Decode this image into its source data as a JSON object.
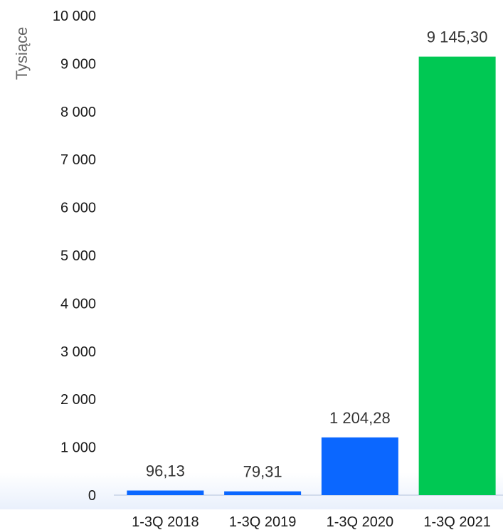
{
  "chart_data": {
    "type": "bar",
    "ylabel": "Tysiące",
    "xlabel": "",
    "title": "",
    "categories": [
      "1-3Q 2018",
      "1-3Q 2019",
      "1-3Q 2020",
      "1-3Q 2021"
    ],
    "values": [
      96.13,
      79.31,
      1204.28,
      9145.3
    ],
    "value_labels": [
      "96,13",
      "79,31",
      "1 204,28",
      "9 145,30"
    ],
    "ylim": [
      0,
      10000
    ],
    "yticks": [
      0,
      1000,
      2000,
      3000,
      4000,
      5000,
      6000,
      7000,
      8000,
      9000,
      10000
    ],
    "ytick_labels": [
      "0",
      "1 000",
      "2 000",
      "3 000",
      "4 000",
      "5 000",
      "6 000",
      "7 000",
      "8 000",
      "9 000",
      "10 000"
    ],
    "bar_colors": [
      "#0b67ff",
      "#0b67ff",
      "#0b67ff",
      "#00c853"
    ],
    "grid": false,
    "legend": "none"
  }
}
